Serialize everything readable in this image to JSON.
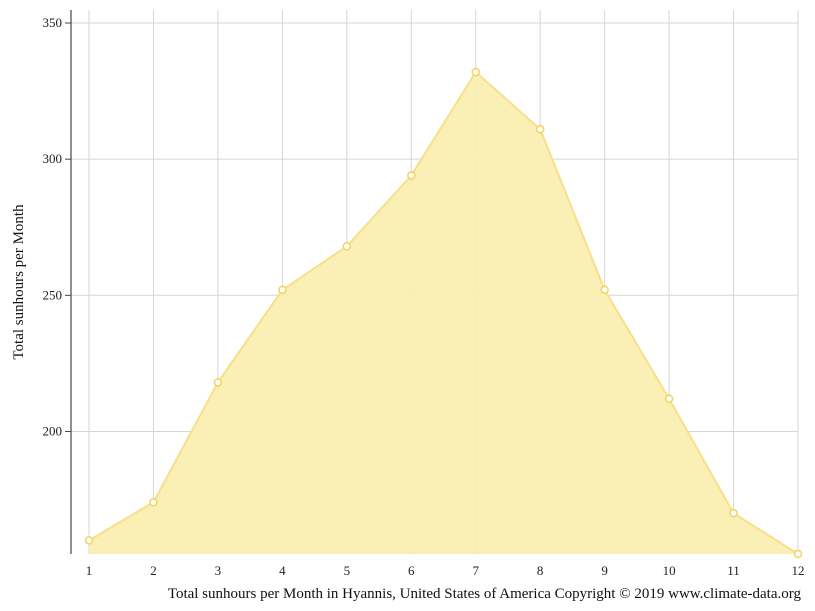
{
  "chart_data": {
    "type": "area",
    "title": "",
    "xlabel": "Total sunhours per Month in Hyannis, United States of America Copyright © 2019 www.climate-data.org",
    "ylabel": "Total sunhours per Month",
    "x": [
      1,
      2,
      3,
      4,
      5,
      6,
      7,
      8,
      9,
      10,
      11,
      12
    ],
    "x_tick_labels": [
      "1",
      "2",
      "3",
      "4",
      "5",
      "6",
      "7",
      "8",
      "9",
      "10",
      "11",
      "12"
    ],
    "series": [
      {
        "values": [
          160,
          174,
          218,
          252,
          268,
          294,
          332,
          311,
          252,
          212,
          170,
          155
        ]
      }
    ],
    "ylim": [
      155,
      355
    ],
    "y_ticks": [
      200,
      250,
      300,
      350
    ],
    "y_tick_labels": [
      "200",
      "250",
      "300",
      "350"
    ],
    "grid": true,
    "legend": "none",
    "colors": {
      "fill": "#faeeb0",
      "line": "#f7e08a",
      "marker_fill": "#ffffff",
      "marker_stroke": "#f3d360",
      "grid": "#d6d6d6",
      "axis": "#444444"
    }
  }
}
